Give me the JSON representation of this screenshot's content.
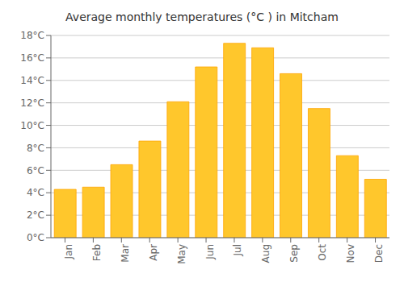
{
  "chart_data": {
    "type": "bar",
    "title": "Average monthly temperatures (°C ) in Mitcham",
    "categories": [
      "Jan",
      "Feb",
      "Mar",
      "Apr",
      "May",
      "Jun",
      "Jul",
      "Aug",
      "Sep",
      "Oct",
      "Nov",
      "Dec"
    ],
    "values": [
      4.3,
      4.5,
      6.5,
      8.6,
      12.1,
      15.2,
      17.3,
      16.9,
      14.6,
      11.5,
      7.3,
      5.2
    ],
    "color": "#FFC72C",
    "ylim": [
      0,
      18
    ],
    "yticks": [
      {
        "value": 0,
        "label": "0°C"
      },
      {
        "value": 2,
        "label": "2°C"
      },
      {
        "value": 4,
        "label": "4°C"
      },
      {
        "value": 6,
        "label": "6°C"
      },
      {
        "value": 8,
        "label": "8°C"
      },
      {
        "value": 10,
        "label": "10°C"
      },
      {
        "value": 12,
        "label": "12°C"
      },
      {
        "value": 14,
        "label": "14°C"
      },
      {
        "value": 16,
        "label": "16°C"
      },
      {
        "value": 18,
        "label": "18°C"
      }
    ],
    "grid": true
  }
}
